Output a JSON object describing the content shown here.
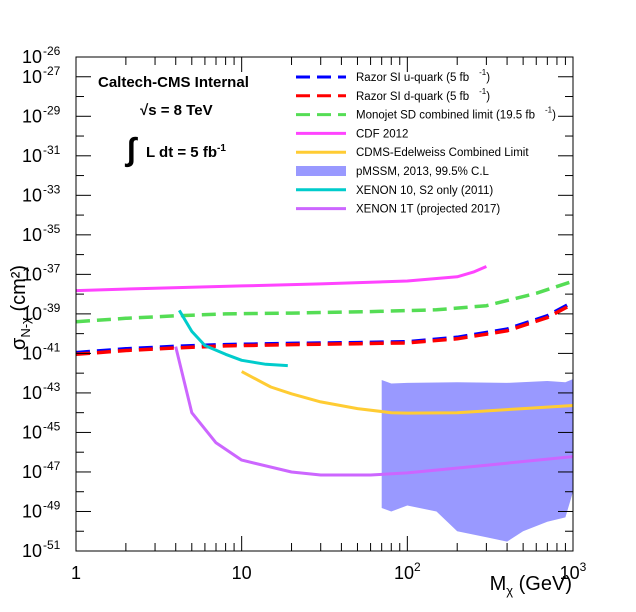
{
  "chart_data": {
    "type": "line",
    "xscale": "log",
    "yscale": "log",
    "xlim": [
      1,
      1000
    ],
    "ylim": [
      1e-51,
      1e-26
    ],
    "xlabel": "M_χ (GeV)",
    "ylabel": "σ_N-χ (cm²)",
    "x_ticks": [
      {
        "base": "1",
        "exp": ""
      },
      {
        "base": "10",
        "exp": ""
      },
      {
        "base": "10",
        "exp": "2"
      },
      {
        "base": "10",
        "exp": "3"
      }
    ],
    "y_ticks": [
      {
        "exp": "-51",
        "v": -51
      },
      {
        "exp": "-49",
        "v": -49
      },
      {
        "exp": "-47",
        "v": -47
      },
      {
        "exp": "-45",
        "v": -45
      },
      {
        "exp": "-43",
        "v": -43
      },
      {
        "exp": "-41",
        "v": -41
      },
      {
        "exp": "-39",
        "v": -39
      },
      {
        "exp": "-37",
        "v": -37
      },
      {
        "exp": "-35",
        "v": -35
      },
      {
        "exp": "-33",
        "v": -33
      },
      {
        "exp": "-31",
        "v": -31
      },
      {
        "exp": "-29",
        "v": -29
      },
      {
        "exp": "-27",
        "v": -27
      },
      {
        "exp": "-26",
        "v": -26
      }
    ],
    "grid": false,
    "legend_position": "top-right",
    "annotations": {
      "experiment": "Caltech-CMS Internal",
      "energy": "√s = 8 TeV",
      "lumi_integral": "∫",
      "lumi_text": "L dt = 5 fb",
      "lumi_exp": "-1"
    },
    "series": [
      {
        "name": "Razor SI u-quark (5 fb",
        "name_exp": "-1",
        "name_tail": ")",
        "color": "#0000ff",
        "style": "dashed",
        "points": [
          [
            1,
            1.1e-41
          ],
          [
            2,
            1.7e-41
          ],
          [
            4,
            2.3e-41
          ],
          [
            8,
            2.8e-41
          ],
          [
            20,
            3.2e-41
          ],
          [
            50,
            3.5e-41
          ],
          [
            100,
            3.9e-41
          ],
          [
            200,
            6.5e-41
          ],
          [
            400,
            1.7e-40
          ],
          [
            700,
            8e-40
          ],
          [
            1000,
            4e-39
          ]
        ]
      },
      {
        "name": "Razor SI d-quark (5 fb",
        "name_exp": "-1",
        "name_tail": ")",
        "color": "#ff0000",
        "style": "dashed",
        "points": [
          [
            1,
            9e-42
          ],
          [
            2,
            1.4e-41
          ],
          [
            4,
            1.9e-41
          ],
          [
            8,
            2.4e-41
          ],
          [
            20,
            2.8e-41
          ],
          [
            50,
            3.1e-41
          ],
          [
            100,
            3.4e-41
          ],
          [
            200,
            5.5e-41
          ],
          [
            400,
            1.4e-40
          ],
          [
            700,
            6.5e-40
          ],
          [
            1000,
            3.2e-39
          ]
        ]
      },
      {
        "name": "Monojet SD combined limit (19.5 fb",
        "name_exp": "-1",
        "name_tail": ")",
        "color": "#55dd55",
        "style": "dashed",
        "points": [
          [
            1,
            4e-40
          ],
          [
            2,
            6e-40
          ],
          [
            4,
            8e-40
          ],
          [
            8,
            1e-39
          ],
          [
            20,
            1.1e-39
          ],
          [
            60,
            1.3e-39
          ],
          [
            150,
            1.6e-39
          ],
          [
            300,
            2.6e-39
          ],
          [
            600,
            1.1e-38
          ],
          [
            1000,
            4.5e-38
          ]
        ]
      },
      {
        "name": "CDF 2012",
        "color": "#ff44ff",
        "style": "solid",
        "points": [
          [
            1,
            1.5e-38
          ],
          [
            3,
            2e-38
          ],
          [
            10,
            2.6e-38
          ],
          [
            30,
            3.3e-38
          ],
          [
            100,
            4.6e-38
          ],
          [
            200,
            7.5e-38
          ],
          [
            250,
            1.3e-37
          ],
          [
            300,
            2.5e-37
          ]
        ]
      },
      {
        "name": "CDMS-Edelweiss Combined Limit",
        "color": "#ffcc33",
        "style": "solid",
        "points": [
          [
            10,
            1.2e-42
          ],
          [
            15,
            2e-43
          ],
          [
            20,
            9e-44
          ],
          [
            30,
            3.5e-44
          ],
          [
            50,
            1.6e-44
          ],
          [
            80,
            1e-44
          ],
          [
            100,
            9.5e-45
          ],
          [
            200,
            1e-44
          ],
          [
            500,
            1.6e-44
          ],
          [
            1000,
            2.3e-44
          ]
        ]
      },
      {
        "name": "pMSSM, 2013, 99.5% C.L",
        "color": "#9999ff",
        "style": "band",
        "upper": [
          [
            70,
            4.5e-43
          ],
          [
            80,
            3e-43
          ],
          [
            100,
            3.2e-43
          ],
          [
            200,
            3.5e-43
          ],
          [
            400,
            3.2e-43
          ],
          [
            700,
            4e-43
          ],
          [
            900,
            3.5e-43
          ],
          [
            1000,
            5e-43
          ]
        ],
        "lower": [
          [
            1000,
            1e-48
          ],
          [
            900,
            5e-50
          ],
          [
            700,
            3e-50
          ],
          [
            500,
            1e-50
          ],
          [
            400,
            3e-51
          ],
          [
            300,
            5e-51
          ],
          [
            200,
            1e-50
          ],
          [
            150,
            1e-49
          ],
          [
            100,
            2e-49
          ],
          [
            80,
            1e-49
          ],
          [
            70,
            1.5e-49
          ]
        ]
      },
      {
        "name": "XENON 10, S2 only (2011)",
        "color": "#00cccc",
        "style": "solid",
        "points": [
          [
            4.2,
            1.5e-39
          ],
          [
            5,
            1.3e-40
          ],
          [
            6,
            2.5e-41
          ],
          [
            8,
            9e-42
          ],
          [
            10,
            4.5e-42
          ],
          [
            14,
            2.8e-42
          ],
          [
            19,
            2.4e-42
          ]
        ]
      },
      {
        "name": "XENON 1T (projected 2017)",
        "color": "#cc66ff",
        "style": "solid",
        "points": [
          [
            4,
            2.2e-41
          ],
          [
            5,
            1e-44
          ],
          [
            7,
            3e-46
          ],
          [
            10,
            4e-47
          ],
          [
            20,
            1e-47
          ],
          [
            30,
            7e-48
          ],
          [
            60,
            7e-48
          ],
          [
            100,
            9e-48
          ],
          [
            300,
            2.2e-47
          ],
          [
            1000,
            6e-47
          ]
        ]
      }
    ]
  }
}
